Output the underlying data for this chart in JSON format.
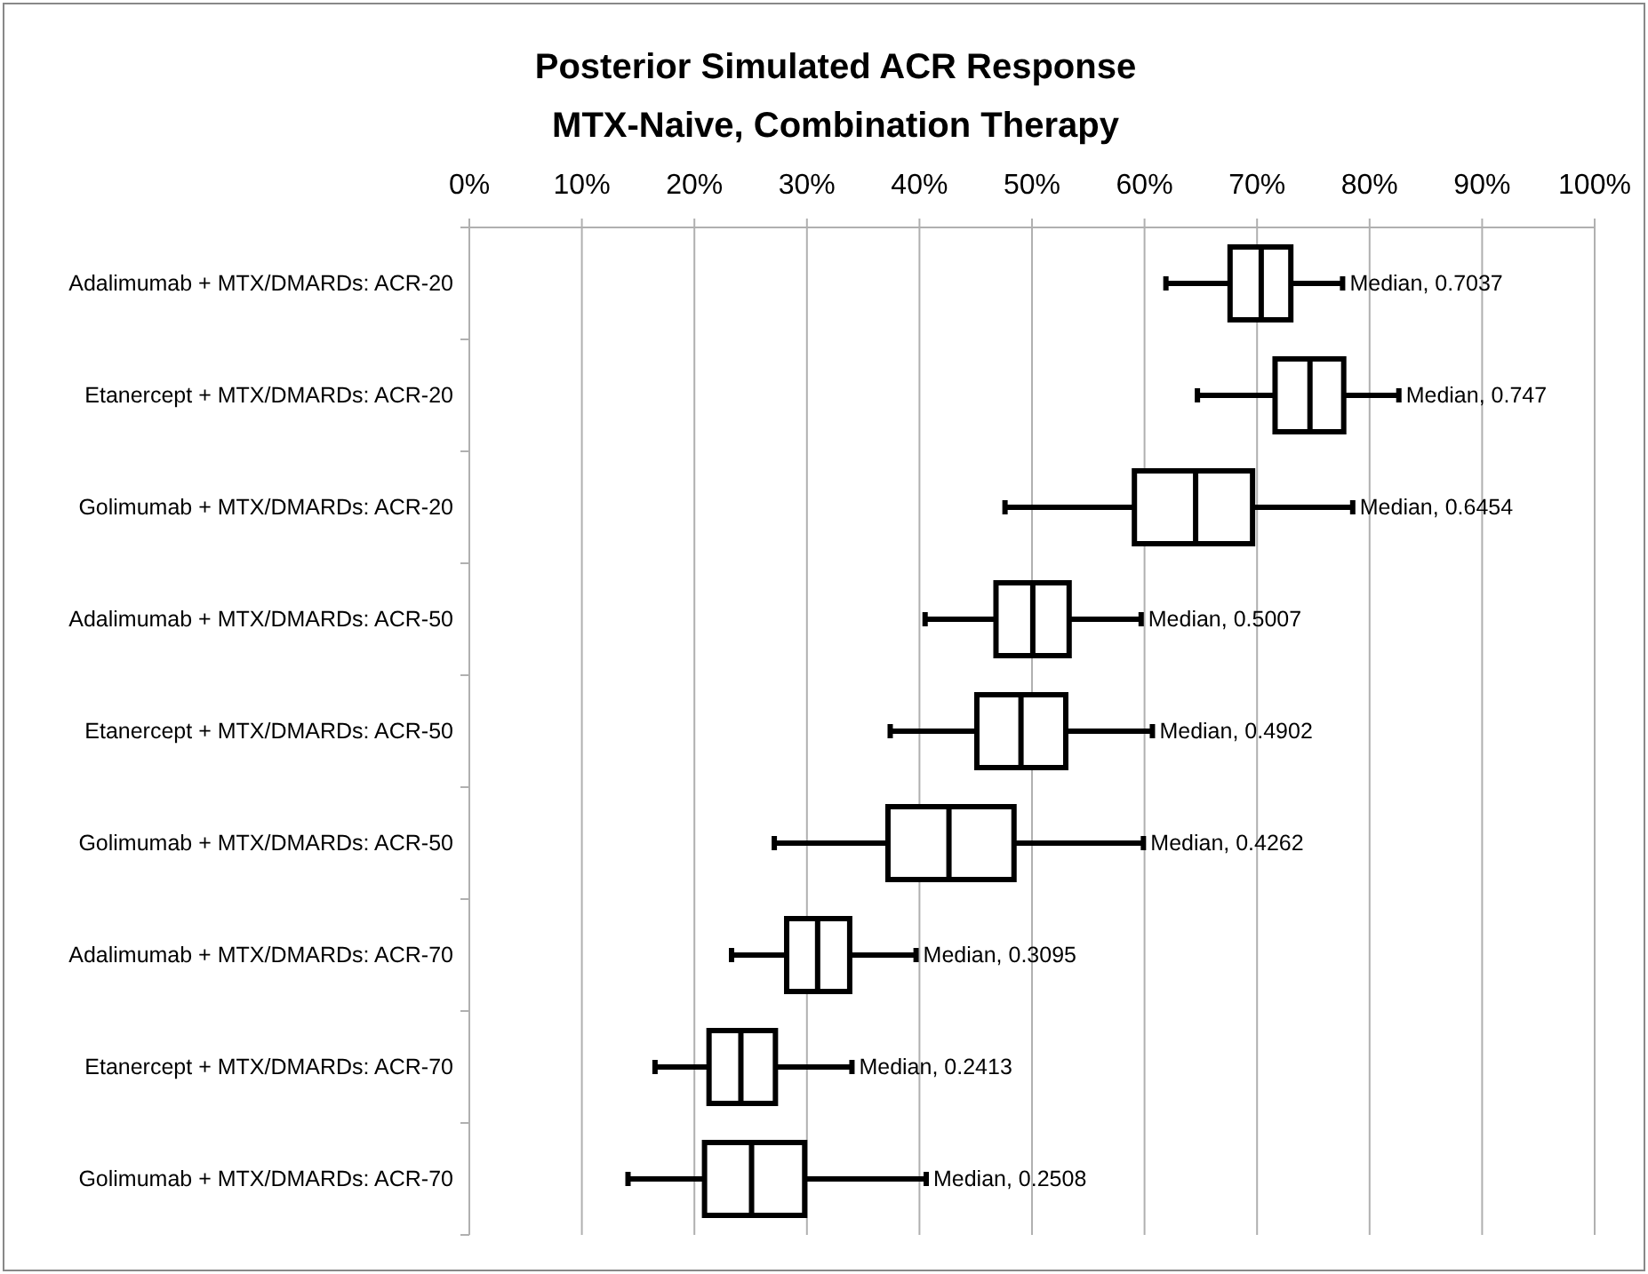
{
  "chart_data": {
    "type": "box",
    "orientation": "horizontal",
    "title": "Posterior Simulated ACR Response",
    "subtitle": "MTX-Naive, Combination Therapy",
    "categories": [
      "Adalimumab + MTX/DMARDs: ACR-20",
      "Etanercept + MTX/DMARDs: ACR-20",
      "Golimumab + MTX/DMARDs: ACR-20",
      "Adalimumab + MTX/DMARDs: ACR-50",
      "Etanercept + MTX/DMARDs: ACR-50",
      "Golimumab + MTX/DMARDs: ACR-50",
      "Adalimumab + MTX/DMARDs: ACR-70",
      "Etanercept + MTX/DMARDs: ACR-70",
      "Golimumab + MTX/DMARDs: ACR-70"
    ],
    "boxes": [
      {
        "low": 0.619,
        "q1": 0.676,
        "median": 0.7037,
        "q3": 0.73,
        "high": 0.776
      },
      {
        "low": 0.647,
        "q1": 0.716,
        "median": 0.747,
        "q3": 0.777,
        "high": 0.826
      },
      {
        "low": 0.476,
        "q1": 0.591,
        "median": 0.6454,
        "q3": 0.696,
        "high": 0.785
      },
      {
        "low": 0.405,
        "q1": 0.468,
        "median": 0.5007,
        "q3": 0.533,
        "high": 0.597
      },
      {
        "low": 0.374,
        "q1": 0.451,
        "median": 0.4902,
        "q3": 0.53,
        "high": 0.607
      },
      {
        "low": 0.271,
        "q1": 0.372,
        "median": 0.4262,
        "q3": 0.484,
        "high": 0.599
      },
      {
        "low": 0.233,
        "q1": 0.282,
        "median": 0.3095,
        "q3": 0.338,
        "high": 0.397
      },
      {
        "low": 0.165,
        "q1": 0.213,
        "median": 0.2413,
        "q3": 0.272,
        "high": 0.34
      },
      {
        "low": 0.141,
        "q1": 0.209,
        "median": 0.2508,
        "q3": 0.298,
        "high": 0.406
      }
    ],
    "color": "#000000",
    "xlim": [
      0,
      1
    ],
    "xticks": [
      {
        "value": 0,
        "label": "0%"
      },
      {
        "value": 0.1,
        "label": "10%"
      },
      {
        "value": 0.2,
        "label": "20%"
      },
      {
        "value": 0.3,
        "label": "30%"
      },
      {
        "value": 0.4,
        "label": "40%"
      },
      {
        "value": 0.5,
        "label": "50%"
      },
      {
        "value": 0.6,
        "label": "60%"
      },
      {
        "value": 0.7,
        "label": "70%"
      },
      {
        "value": 0.8,
        "label": "80%"
      },
      {
        "value": 0.9,
        "label": "90%"
      },
      {
        "value": 1,
        "label": "100%"
      }
    ],
    "grid": "x",
    "annotations": [
      {
        "text": "Median, 0.7037",
        "x": 0.776,
        "y": "Adalimumab + MTX/DMARDs: ACR-20"
      },
      {
        "text": "Median, 0.747",
        "x": 0.826,
        "y": "Etanercept + MTX/DMARDs: ACR-20"
      },
      {
        "text": "Median, 0.6454",
        "x": 0.785,
        "y": "Golimumab + MTX/DMARDs: ACR-20"
      },
      {
        "text": "Median, 0.5007",
        "x": 0.597,
        "y": "Adalimumab + MTX/DMARDs: ACR-50"
      },
      {
        "text": "Median, 0.4902",
        "x": 0.607,
        "y": "Etanercept + MTX/DMARDs: ACR-50"
      },
      {
        "text": "Median, 0.4262",
        "x": 0.599,
        "y": "Golimumab + MTX/DMARDs: ACR-50"
      },
      {
        "text": "Median, 0.3095",
        "x": 0.397,
        "y": "Adalimumab + MTX/DMARDs: ACR-70"
      },
      {
        "text": "Median, 0.2413",
        "x": 0.34,
        "y": "Etanercept + MTX/DMARDs: ACR-70"
      },
      {
        "text": "Median, 0.2508",
        "x": 0.406,
        "y": "Golimumab + MTX/DMARDs: ACR-70"
      }
    ]
  }
}
